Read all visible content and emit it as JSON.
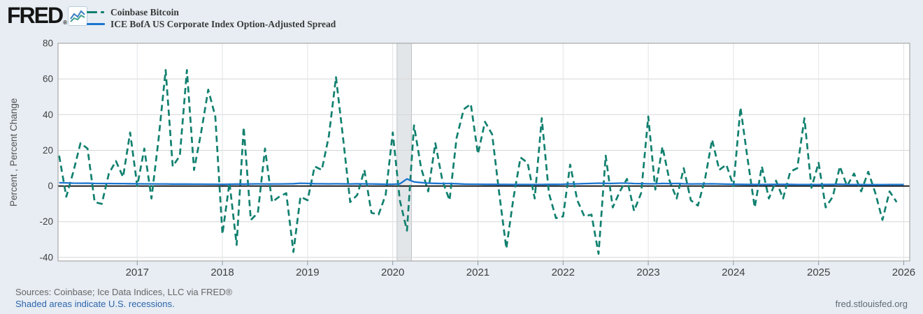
{
  "header": {
    "logo_text": "FRED",
    "logo_registered": "®"
  },
  "legend": [
    {
      "label": "Coinbase Bitcoin",
      "color": "#11806f",
      "style": "dashed"
    },
    {
      "label": "ICE BofA US Corporate Index Option-Adjusted Spread",
      "color": "#1b75d0",
      "style": "solid"
    }
  ],
  "footer": {
    "sources": "Sources: Coinbase; Ice Data Indices, LLC via FRED®",
    "recession_note": "Shaded areas indicate U.S. recessions.",
    "site": "fred.stlouisfed.org"
  },
  "chart_data": {
    "type": "line",
    "title": "",
    "xlabel": "",
    "ylabel": "Percent , Percent Change",
    "ylim": [
      -42,
      80
    ],
    "yticks": [
      80,
      60,
      40,
      20,
      0,
      -20,
      -40
    ],
    "xlim_years": [
      2016.07,
      2026.07
    ],
    "xticks_years": [
      2017,
      2018,
      2019,
      2020,
      2021,
      2022,
      2023,
      2024,
      2025,
      2026
    ],
    "grid": true,
    "zero_line": true,
    "legend_position": "top-left",
    "colors": {
      "btc": "#11806f",
      "oas": "#1b75d0",
      "recession_fill": "#e3e6e9",
      "recession_edge": "#bcc2c7",
      "grid_h": "#d5d5d5",
      "grid_v": "#e0e3e6",
      "plot_border": "#a8a8a8",
      "zero_line": "#000000"
    },
    "recession_bands": [
      {
        "start_year": 2020.05,
        "end_year": 2020.22,
        "period": "2020-02 to 2020-04"
      }
    ],
    "series": [
      {
        "name": "Coinbase Bitcoin",
        "unit": "Percent Change",
        "frequency": "monthly",
        "line_style": "dashed",
        "color": "#11806f",
        "start_month": "2016-02",
        "values": [
          17,
          -6,
          8,
          24,
          21,
          -9,
          -10,
          7,
          14,
          5,
          30,
          0,
          21,
          -7,
          26,
          65,
          11,
          17,
          65,
          9,
          30,
          54,
          39,
          -27,
          2,
          -33,
          33,
          -19,
          -15,
          21,
          -9,
          -6,
          -4,
          -37,
          -6,
          -8,
          11,
          9,
          28,
          61,
          27,
          -9,
          -5,
          9,
          -15,
          -16,
          -5,
          30,
          -8,
          -25,
          34,
          10,
          -3,
          24,
          3,
          -8,
          27,
          43,
          46,
          18,
          36,
          29,
          -4,
          -35,
          -7,
          16,
          13,
          -7,
          38,
          -4,
          -18,
          -17,
          12,
          -8,
          -17,
          -16,
          -38,
          17,
          -12,
          -3,
          4,
          -14,
          -4,
          39,
          -2,
          22,
          3,
          -7,
          10,
          -8,
          -11,
          4,
          26,
          9,
          12,
          0,
          44,
          15,
          -12,
          11,
          -7,
          3,
          -7,
          8,
          10,
          38,
          -1,
          13,
          -12,
          -6,
          11,
          0,
          7,
          -3,
          8,
          -4,
          -19,
          -3,
          -9
        ]
      },
      {
        "name": "ICE BofA US Corporate Index Option-Adjusted Spread",
        "unit": "Percent",
        "frequency": "monthly",
        "line_style": "solid",
        "color": "#1b75d0",
        "start_month": "2016-02",
        "values": [
          1.85,
          1.75,
          1.6,
          1.55,
          1.6,
          1.45,
          1.4,
          1.4,
          1.35,
          1.35,
          1.3,
          1.25,
          1.2,
          1.2,
          1.15,
          1.15,
          1.1,
          1.1,
          1.1,
          1.05,
          1.05,
          1.0,
          1.0,
          0.95,
          1.0,
          1.1,
          1.1,
          1.15,
          1.2,
          1.15,
          1.15,
          1.15,
          1.2,
          1.3,
          1.55,
          1.45,
          1.3,
          1.25,
          1.2,
          1.25,
          1.2,
          1.15,
          1.25,
          1.2,
          1.15,
          1.1,
          1.0,
          1.0,
          1.2,
          4.0,
          2.3,
          1.9,
          1.6,
          1.5,
          1.4,
          1.4,
          1.3,
          1.1,
          1.0,
          1.0,
          0.95,
          0.95,
          0.9,
          0.9,
          0.85,
          0.85,
          0.85,
          0.85,
          0.85,
          0.95,
          0.95,
          1.0,
          1.2,
          1.2,
          1.35,
          1.45,
          1.6,
          1.5,
          1.45,
          1.6,
          1.6,
          1.4,
          1.35,
          1.25,
          1.25,
          1.45,
          1.35,
          1.45,
          1.25,
          1.15,
          1.2,
          1.2,
          1.25,
          1.15,
          1.05,
          1.0,
          0.95,
          0.9,
          0.9,
          0.85,
          0.9,
          0.95,
          0.95,
          0.9,
          0.8,
          0.8,
          0.8,
          0.8,
          0.85,
          0.9,
          1.0,
          0.85,
          0.8,
          0.8,
          0.75,
          0.75,
          0.75,
          0.8,
          0.8,
          0.8
        ]
      }
    ]
  }
}
